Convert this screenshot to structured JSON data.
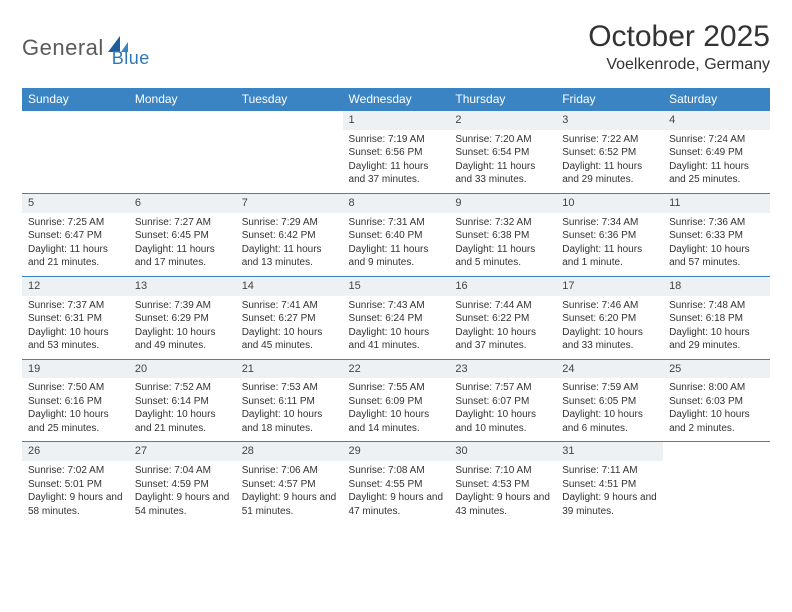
{
  "logo": {
    "text1": "General",
    "text2": "Blue"
  },
  "title": "October 2025",
  "location": "Voelkenrode, Germany",
  "colors": {
    "header_bg": "#3b84c4",
    "header_text": "#ffffff",
    "daynum_bg": "#eef1f3",
    "border": "#3b84c4",
    "text": "#333333",
    "logo_gray": "#5b5b5b",
    "logo_blue": "#2f78b7"
  },
  "dayHeaders": [
    "Sunday",
    "Monday",
    "Tuesday",
    "Wednesday",
    "Thursday",
    "Friday",
    "Saturday"
  ],
  "weeks": [
    [
      null,
      null,
      null,
      {
        "n": "1",
        "sr": "7:19 AM",
        "ss": "6:56 PM",
        "dl": "11 hours and 37 minutes."
      },
      {
        "n": "2",
        "sr": "7:20 AM",
        "ss": "6:54 PM",
        "dl": "11 hours and 33 minutes."
      },
      {
        "n": "3",
        "sr": "7:22 AM",
        "ss": "6:52 PM",
        "dl": "11 hours and 29 minutes."
      },
      {
        "n": "4",
        "sr": "7:24 AM",
        "ss": "6:49 PM",
        "dl": "11 hours and 25 minutes."
      }
    ],
    [
      {
        "n": "5",
        "sr": "7:25 AM",
        "ss": "6:47 PM",
        "dl": "11 hours and 21 minutes."
      },
      {
        "n": "6",
        "sr": "7:27 AM",
        "ss": "6:45 PM",
        "dl": "11 hours and 17 minutes."
      },
      {
        "n": "7",
        "sr": "7:29 AM",
        "ss": "6:42 PM",
        "dl": "11 hours and 13 minutes."
      },
      {
        "n": "8",
        "sr": "7:31 AM",
        "ss": "6:40 PM",
        "dl": "11 hours and 9 minutes."
      },
      {
        "n": "9",
        "sr": "7:32 AM",
        "ss": "6:38 PM",
        "dl": "11 hours and 5 minutes."
      },
      {
        "n": "10",
        "sr": "7:34 AM",
        "ss": "6:36 PM",
        "dl": "11 hours and 1 minute."
      },
      {
        "n": "11",
        "sr": "7:36 AM",
        "ss": "6:33 PM",
        "dl": "10 hours and 57 minutes."
      }
    ],
    [
      {
        "n": "12",
        "sr": "7:37 AM",
        "ss": "6:31 PM",
        "dl": "10 hours and 53 minutes."
      },
      {
        "n": "13",
        "sr": "7:39 AM",
        "ss": "6:29 PM",
        "dl": "10 hours and 49 minutes."
      },
      {
        "n": "14",
        "sr": "7:41 AM",
        "ss": "6:27 PM",
        "dl": "10 hours and 45 minutes."
      },
      {
        "n": "15",
        "sr": "7:43 AM",
        "ss": "6:24 PM",
        "dl": "10 hours and 41 minutes."
      },
      {
        "n": "16",
        "sr": "7:44 AM",
        "ss": "6:22 PM",
        "dl": "10 hours and 37 minutes."
      },
      {
        "n": "17",
        "sr": "7:46 AM",
        "ss": "6:20 PM",
        "dl": "10 hours and 33 minutes."
      },
      {
        "n": "18",
        "sr": "7:48 AM",
        "ss": "6:18 PM",
        "dl": "10 hours and 29 minutes."
      }
    ],
    [
      {
        "n": "19",
        "sr": "7:50 AM",
        "ss": "6:16 PM",
        "dl": "10 hours and 25 minutes."
      },
      {
        "n": "20",
        "sr": "7:52 AM",
        "ss": "6:14 PM",
        "dl": "10 hours and 21 minutes."
      },
      {
        "n": "21",
        "sr": "7:53 AM",
        "ss": "6:11 PM",
        "dl": "10 hours and 18 minutes."
      },
      {
        "n": "22",
        "sr": "7:55 AM",
        "ss": "6:09 PM",
        "dl": "10 hours and 14 minutes."
      },
      {
        "n": "23",
        "sr": "7:57 AM",
        "ss": "6:07 PM",
        "dl": "10 hours and 10 minutes."
      },
      {
        "n": "24",
        "sr": "7:59 AM",
        "ss": "6:05 PM",
        "dl": "10 hours and 6 minutes."
      },
      {
        "n": "25",
        "sr": "8:00 AM",
        "ss": "6:03 PM",
        "dl": "10 hours and 2 minutes."
      }
    ],
    [
      {
        "n": "26",
        "sr": "7:02 AM",
        "ss": "5:01 PM",
        "dl": "9 hours and 58 minutes."
      },
      {
        "n": "27",
        "sr": "7:04 AM",
        "ss": "4:59 PM",
        "dl": "9 hours and 54 minutes."
      },
      {
        "n": "28",
        "sr": "7:06 AM",
        "ss": "4:57 PM",
        "dl": "9 hours and 51 minutes."
      },
      {
        "n": "29",
        "sr": "7:08 AM",
        "ss": "4:55 PM",
        "dl": "9 hours and 47 minutes."
      },
      {
        "n": "30",
        "sr": "7:10 AM",
        "ss": "4:53 PM",
        "dl": "9 hours and 43 minutes."
      },
      {
        "n": "31",
        "sr": "7:11 AM",
        "ss": "4:51 PM",
        "dl": "9 hours and 39 minutes."
      },
      null
    ]
  ],
  "labels": {
    "sunrise": "Sunrise:",
    "sunset": "Sunset:",
    "daylight": "Daylight:"
  }
}
